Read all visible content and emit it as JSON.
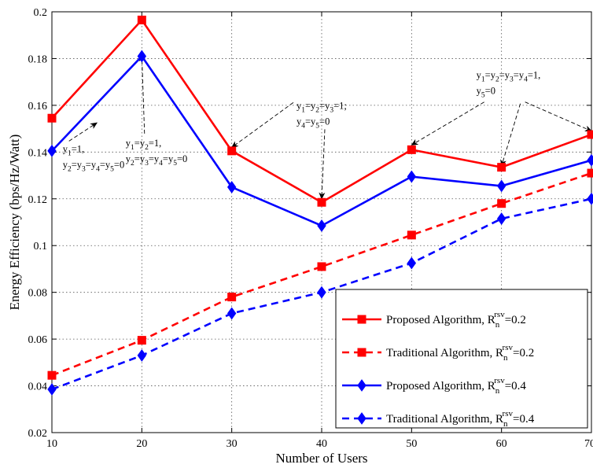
{
  "chart_data": {
    "type": "line",
    "xlabel": "Number of Users",
    "ylabel": "Energy Efficiency (bps/Hz/Watt)",
    "x": [
      10,
      20,
      30,
      40,
      50,
      60,
      70
    ],
    "xlim": [
      10,
      70
    ],
    "ylim": [
      0.02,
      0.2
    ],
    "xticks": [
      "10",
      "20",
      "30",
      "40",
      "50",
      "60",
      "70"
    ],
    "yticks": [
      "0.02",
      "0.04",
      "0.06",
      "0.08",
      "0.1",
      "0.12",
      "0.14",
      "0.16",
      "0.18",
      "0.2"
    ],
    "grid": true,
    "legend_position": "bottom-right",
    "series": [
      {
        "legend_main": "Proposed Algorithm, R",
        "legend_sub": "n",
        "legend_sup": "rsv",
        "legend_value": "=0.2",
        "color": "#ff0000",
        "dash": false,
        "marker": "square",
        "values": [
          0.1545,
          0.1965,
          0.1405,
          0.1185,
          0.141,
          0.1335,
          0.1475
        ]
      },
      {
        "legend_main": "Traditional Algorithm, R",
        "legend_sub": "n",
        "legend_sup": "rsv",
        "legend_value": "=0.2",
        "color": "#ff0000",
        "dash": true,
        "marker": "square",
        "values": [
          0.0445,
          0.0595,
          0.078,
          0.091,
          0.1045,
          0.118,
          0.131
        ]
      },
      {
        "legend_main": "Proposed Algorithm, R",
        "legend_sub": "n",
        "legend_sup": "rsv",
        "legend_value": "=0.4",
        "color": "#0000ff",
        "dash": false,
        "marker": "diamond",
        "values": [
          0.1405,
          0.181,
          0.125,
          0.1085,
          0.1295,
          0.1255,
          0.1365
        ]
      },
      {
        "legend_main": "Traditional Algorithm, R",
        "legend_sub": "n",
        "legend_sup": "rsv",
        "legend_value": "=0.4",
        "color": "#0000ff",
        "dash": true,
        "marker": "diamond",
        "values": [
          0.0385,
          0.053,
          0.071,
          0.08,
          0.0925,
          0.1115,
          0.12
        ]
      }
    ],
    "annotations": [
      {
        "lines": [
          [
            [
              "y",
              "1",
              "=1,"
            ]
          ],
          [
            [
              "y",
              "2",
              "="
            ],
            [
              "y",
              "3",
              "="
            ],
            [
              "y",
              "4",
              "="
            ],
            [
              "y",
              "5",
              "=0"
            ]
          ]
        ],
        "text_at": [
          11.2,
          0.14
        ],
        "arrow_to": [
          15,
          0.1525
        ]
      },
      {
        "lines": [
          [
            [
              "y",
              "1",
              "="
            ],
            [
              "y",
              "2",
              "=1,"
            ]
          ],
          [
            [
              "y",
              "2",
              "="
            ],
            [
              "y",
              "3",
              "="
            ],
            [
              "y",
              "4",
              "="
            ],
            [
              "y",
              "5",
              "=0"
            ]
          ]
        ],
        "text_at": [
          18.2,
          0.1425
        ],
        "arrow_to": [
          20,
          0.1815
        ]
      },
      {
        "lines": [
          [
            [
              "y",
              "1",
              "="
            ],
            [
              "y",
              "2",
              "="
            ],
            [
              "y",
              "3",
              "=1;"
            ]
          ],
          [
            [
              "y",
              "4",
              "="
            ],
            [
              "y",
              "5",
              "=0"
            ]
          ]
        ],
        "text_at": [
          37.2,
          0.1585
        ],
        "arrow_to": [
          30,
          0.142
        ],
        "arrow2_to": [
          40,
          0.12
        ]
      },
      {
        "lines": [
          [
            [
              "y",
              "1",
              "="
            ],
            [
              "y",
              "2",
              "="
            ],
            [
              "y",
              "3",
              "="
            ],
            [
              "y",
              "4",
              "=1,"
            ]
          ],
          [
            [
              "y",
              "5",
              "=0"
            ]
          ]
        ],
        "text_at": [
          57.2,
          0.1715
        ],
        "arrow_to": [
          50,
          0.143
        ],
        "arrow2_to": [
          60,
          0.134
        ],
        "arrow3_to": [
          70,
          0.149
        ]
      }
    ]
  }
}
